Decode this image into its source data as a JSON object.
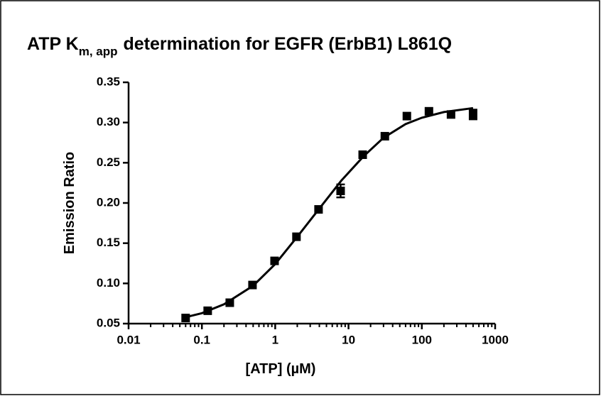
{
  "chart_data": {
    "type": "scatter",
    "title": {
      "main": "ATP K",
      "subscript": "m, app",
      "rest": "determination for EGFR (ErbB1) L861Q"
    },
    "x_label": "[ATP] (µM)",
    "y_label": "Emission Ratio",
    "log_x": true,
    "color": "#000000",
    "x": [
      0.06,
      0.12,
      0.24,
      0.49,
      0.98,
      1.95,
      3.9,
      7.8,
      15.6,
      31.3,
      62.5,
      125,
      250,
      500
    ],
    "values": [
      0.057,
      0.066,
      0.076,
      0.098,
      0.128,
      0.158,
      0.192,
      0.215,
      0.26,
      0.283,
      0.308,
      0.314,
      0.31,
      0.31
    ],
    "errors": [
      null,
      null,
      null,
      null,
      null,
      null,
      null,
      0.008,
      null,
      null,
      null,
      null,
      null,
      0.006
    ],
    "fit": {
      "x": [
        0.06,
        0.1,
        0.2,
        0.5,
        1,
        2,
        4,
        8,
        16,
        30,
        60,
        100,
        200,
        500
      ],
      "values": [
        0.058,
        0.063,
        0.074,
        0.097,
        0.124,
        0.158,
        0.193,
        0.228,
        0.258,
        0.281,
        0.298,
        0.306,
        0.313,
        0.318
      ]
    },
    "xlim": [
      0.01,
      1000
    ],
    "xticks": [
      0.01,
      0.1,
      1,
      10,
      100,
      1000
    ],
    "xminorticks": [
      0.02,
      0.03,
      0.04,
      0.05,
      0.06,
      0.07,
      0.08,
      0.09,
      0.2,
      0.3,
      0.4,
      0.5,
      0.6,
      0.7,
      0.8,
      0.9,
      2,
      3,
      4,
      5,
      6,
      7,
      8,
      9,
      20,
      30,
      40,
      50,
      60,
      70,
      80,
      90,
      200,
      300,
      400,
      500,
      600,
      700,
      800,
      900
    ],
    "ylim": [
      0.05,
      0.35
    ],
    "yticks": [
      0.05,
      {
        "value": 0.1,
        "label": "0.10"
      },
      0.15,
      {
        "value": 0.2,
        "label": "0.20"
      },
      0.25,
      {
        "value": 0.3,
        "label": "0.30"
      },
      0.35
    ]
  }
}
